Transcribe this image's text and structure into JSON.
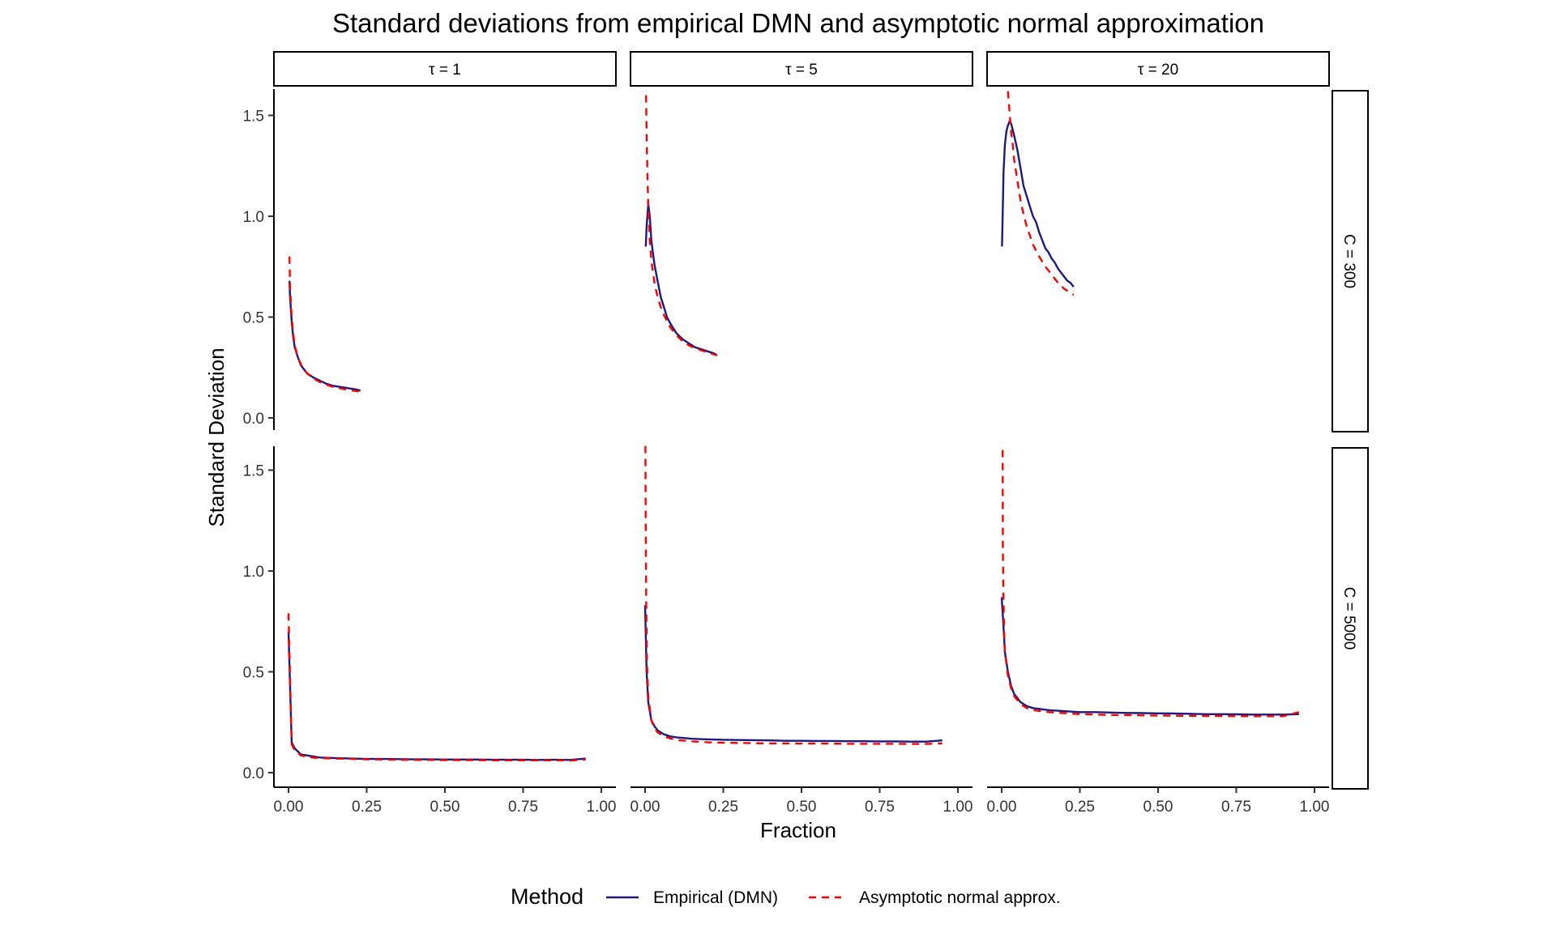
{
  "chart_data": {
    "type": "line",
    "title": "Standard deviations from empirical DMN and asymptotic normal approximation",
    "xlabel": "Fraction",
    "ylabel": "Standard Deviation",
    "xlim": [
      0,
      1
    ],
    "ylim": [
      0,
      1.6
    ],
    "x_ticks": [
      "0.00",
      "0.25",
      "0.50",
      "0.75",
      "1.00"
    ],
    "y_ticks": [
      "0.0",
      "0.5",
      "1.0",
      "1.5"
    ],
    "facet_cols": [
      "τ = 1",
      "τ = 5",
      "τ = 20"
    ],
    "facet_rows": [
      "C = 300",
      "C = 5000"
    ],
    "legend": {
      "title": "Method",
      "position": "bottom",
      "items": [
        {
          "label": "Empirical (DMN)",
          "color": "#1a1a80",
          "style": "solid"
        },
        {
          "label": "Asymptotic normal approx.",
          "color": "#ff0000",
          "style": "dashed"
        }
      ]
    },
    "panels": [
      {
        "row": 0,
        "col": 0,
        "series": [
          {
            "name": "Empirical (DMN)",
            "x": [
              0.003,
              0.005,
              0.01,
              0.015,
              0.02,
              0.03,
              0.04,
              0.05,
              0.06,
              0.08,
              0.1,
              0.12,
              0.14,
              0.16,
              0.18,
              0.2,
              0.22,
              0.23
            ],
            "y": [
              0.68,
              0.6,
              0.48,
              0.4,
              0.35,
              0.3,
              0.26,
              0.24,
              0.22,
              0.2,
              0.185,
              0.17,
              0.16,
              0.155,
              0.15,
              0.145,
              0.14,
              0.135
            ]
          },
          {
            "name": "Asymptotic normal approx.",
            "x": [
              0.003,
              0.005,
              0.01,
              0.015,
              0.02,
              0.03,
              0.04,
              0.05,
              0.06,
              0.08,
              0.1,
              0.12,
              0.14,
              0.16,
              0.18,
              0.2,
              0.22,
              0.23
            ],
            "y": [
              0.8,
              0.65,
              0.5,
              0.42,
              0.36,
              0.3,
              0.265,
              0.24,
              0.22,
              0.195,
              0.178,
              0.165,
              0.155,
              0.148,
              0.142,
              0.137,
              0.132,
              0.13
            ]
          }
        ]
      },
      {
        "row": 0,
        "col": 1,
        "series": [
          {
            "name": "Empirical (DMN)",
            "x": [
              0.002,
              0.005,
              0.01,
              0.015,
              0.02,
              0.03,
              0.04,
              0.05,
              0.06,
              0.07,
              0.08,
              0.1,
              0.12,
              0.14,
              0.16,
              0.18,
              0.2,
              0.22,
              0.23
            ],
            "y": [
              0.85,
              0.95,
              1.06,
              1.0,
              0.88,
              0.76,
              0.68,
              0.6,
              0.55,
              0.5,
              0.47,
              0.42,
              0.39,
              0.37,
              0.35,
              0.34,
              0.33,
              0.32,
              0.31
            ]
          },
          {
            "name": "Asymptotic normal approx.",
            "x": [
              0.003,
              0.005,
              0.008,
              0.01,
              0.015,
              0.02,
              0.03,
              0.04,
              0.05,
              0.06,
              0.08,
              0.1,
              0.12,
              0.14,
              0.16,
              0.18,
              0.2,
              0.22,
              0.23
            ],
            "y": [
              1.6,
              1.4,
              1.18,
              1.05,
              0.88,
              0.78,
              0.67,
              0.6,
              0.55,
              0.51,
              0.45,
              0.41,
              0.38,
              0.36,
              0.345,
              0.335,
              0.325,
              0.315,
              0.31
            ]
          }
        ]
      },
      {
        "row": 0,
        "col": 2,
        "series": [
          {
            "name": "Empirical (DMN)",
            "x": [
              0.001,
              0.003,
              0.006,
              0.01,
              0.015,
              0.02,
              0.025,
              0.03,
              0.035,
              0.04,
              0.05,
              0.06,
              0.07,
              0.08,
              0.09,
              0.1,
              0.11,
              0.12,
              0.13,
              0.14,
              0.15,
              0.16,
              0.17,
              0.18,
              0.19,
              0.2,
              0.21,
              0.22,
              0.23
            ],
            "y": [
              0.85,
              1.0,
              1.22,
              1.35,
              1.42,
              1.45,
              1.47,
              1.46,
              1.43,
              1.4,
              1.33,
              1.24,
              1.15,
              1.1,
              1.05,
              1.0,
              0.97,
              0.92,
              0.88,
              0.84,
              0.82,
              0.79,
              0.77,
              0.74,
              0.72,
              0.7,
              0.68,
              0.67,
              0.65
            ]
          },
          {
            "name": "Asymptotic normal approx.",
            "x": [
              0.02,
              0.025,
              0.03,
              0.035,
              0.04,
              0.05,
              0.06,
              0.07,
              0.08,
              0.1,
              0.12,
              0.14,
              0.16,
              0.18,
              0.2,
              0.22,
              0.23
            ],
            "y": [
              1.62,
              1.52,
              1.42,
              1.36,
              1.28,
              1.18,
              1.08,
              1.01,
              0.95,
              0.86,
              0.8,
              0.75,
              0.71,
              0.67,
              0.64,
              0.62,
              0.61
            ]
          }
        ]
      },
      {
        "row": 1,
        "col": 0,
        "series": [
          {
            "name": "Empirical (DMN)",
            "x": [
              0.0,
              0.01,
              0.02,
              0.04,
              0.06,
              0.08,
              0.1,
              0.15,
              0.2,
              0.25,
              0.3,
              0.35,
              0.4,
              0.45,
              0.5,
              0.55,
              0.6,
              0.65,
              0.7,
              0.75,
              0.8,
              0.85,
              0.9,
              0.95
            ],
            "y": [
              0.7,
              0.15,
              0.12,
              0.09,
              0.085,
              0.08,
              0.075,
              0.072,
              0.07,
              0.068,
              0.068,
              0.067,
              0.066,
              0.066,
              0.065,
              0.065,
              0.065,
              0.064,
              0.064,
              0.064,
              0.063,
              0.064,
              0.063,
              0.07
            ]
          },
          {
            "name": "Asymptotic normal approx.",
            "x": [
              0.0,
              0.01,
              0.02,
              0.04,
              0.06,
              0.08,
              0.1,
              0.15,
              0.2,
              0.25,
              0.3,
              0.35,
              0.4,
              0.45,
              0.5,
              0.55,
              0.6,
              0.65,
              0.7,
              0.75,
              0.8,
              0.85,
              0.9,
              0.95
            ],
            "y": [
              0.79,
              0.14,
              0.11,
              0.085,
              0.078,
              0.074,
              0.072,
              0.07,
              0.068,
              0.066,
              0.065,
              0.064,
              0.063,
              0.063,
              0.062,
              0.062,
              0.062,
              0.061,
              0.061,
              0.061,
              0.061,
              0.061,
              0.06,
              0.065
            ]
          }
        ]
      },
      {
        "row": 1,
        "col": 1,
        "series": [
          {
            "name": "Empirical (DMN)",
            "x": [
              0.0,
              0.005,
              0.01,
              0.02,
              0.03,
              0.04,
              0.06,
              0.08,
              0.1,
              0.15,
              0.2,
              0.25,
              0.3,
              0.35,
              0.4,
              0.45,
              0.5,
              0.55,
              0.6,
              0.65,
              0.7,
              0.75,
              0.8,
              0.85,
              0.9,
              0.95
            ],
            "y": [
              0.83,
              0.5,
              0.35,
              0.26,
              0.23,
              0.21,
              0.19,
              0.18,
              0.175,
              0.168,
              0.165,
              0.163,
              0.162,
              0.161,
              0.16,
              0.158,
              0.158,
              0.157,
              0.157,
              0.156,
              0.156,
              0.155,
              0.155,
              0.154,
              0.154,
              0.16
            ]
          },
          {
            "name": "Asymptotic normal approx.",
            "x": [
              0.001,
              0.002,
              0.004,
              0.006,
              0.01,
              0.02,
              0.03,
              0.04,
              0.06,
              0.08,
              0.1,
              0.15,
              0.2,
              0.25,
              0.3,
              0.35,
              0.4,
              0.45,
              0.5,
              0.55,
              0.6,
              0.65,
              0.7,
              0.75,
              0.8,
              0.85,
              0.9,
              0.95
            ],
            "y": [
              1.62,
              1.2,
              0.8,
              0.55,
              0.38,
              0.26,
              0.22,
              0.2,
              0.18,
              0.17,
              0.162,
              0.155,
              0.15,
              0.148,
              0.147,
              0.146,
              0.145,
              0.145,
              0.144,
              0.144,
              0.144,
              0.143,
              0.143,
              0.143,
              0.143,
              0.142,
              0.142,
              0.145
            ]
          }
        ]
      },
      {
        "row": 1,
        "col": 2,
        "series": [
          {
            "name": "Empirical (DMN)",
            "x": [
              0.0,
              0.005,
              0.01,
              0.02,
              0.03,
              0.04,
              0.05,
              0.06,
              0.08,
              0.1,
              0.15,
              0.2,
              0.25,
              0.3,
              0.35,
              0.4,
              0.45,
              0.5,
              0.55,
              0.6,
              0.65,
              0.7,
              0.75,
              0.8,
              0.85,
              0.9,
              0.95
            ],
            "y": [
              0.87,
              0.75,
              0.6,
              0.5,
              0.43,
              0.39,
              0.37,
              0.35,
              0.33,
              0.32,
              0.31,
              0.305,
              0.3,
              0.3,
              0.298,
              0.296,
              0.295,
              0.294,
              0.293,
              0.292,
              0.29,
              0.29,
              0.289,
              0.288,
              0.288,
              0.288,
              0.29
            ]
          },
          {
            "name": "Asymptotic normal approx.",
            "x": [
              0.003,
              0.004,
              0.006,
              0.008,
              0.01,
              0.02,
              0.03,
              0.04,
              0.05,
              0.06,
              0.08,
              0.1,
              0.15,
              0.2,
              0.25,
              0.3,
              0.35,
              0.4,
              0.45,
              0.5,
              0.55,
              0.6,
              0.65,
              0.7,
              0.75,
              0.8,
              0.85,
              0.9,
              0.95
            ],
            "y": [
              1.6,
              1.1,
              0.85,
              0.7,
              0.6,
              0.48,
              0.42,
              0.38,
              0.36,
              0.34,
              0.32,
              0.31,
              0.3,
              0.295,
              0.29,
              0.288,
              0.286,
              0.285,
              0.284,
              0.283,
              0.282,
              0.282,
              0.281,
              0.281,
              0.28,
              0.28,
              0.28,
              0.28,
              0.3
            ]
          }
        ]
      }
    ]
  }
}
